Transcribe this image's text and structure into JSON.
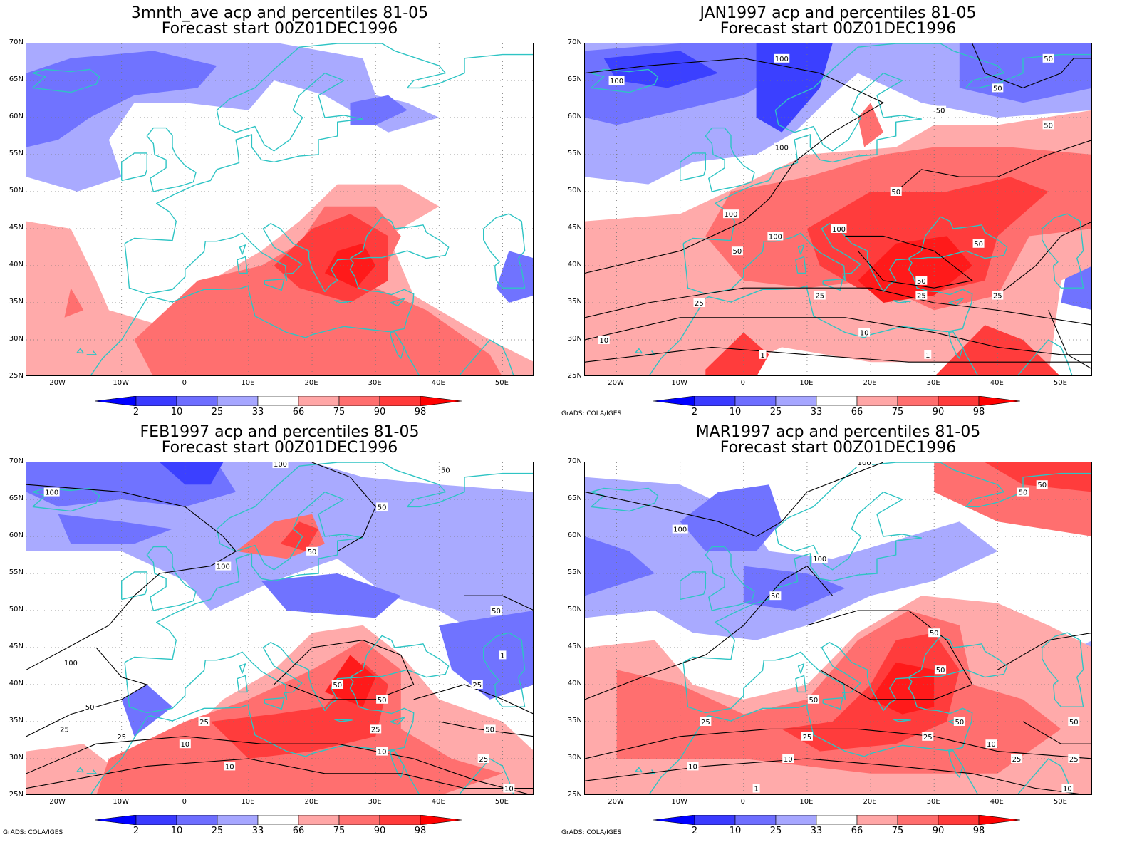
{
  "panels": [
    {
      "title_line1": "3mnth_ave acp and percentiles 81-05",
      "title_line2": "Forecast start 00Z01DEC1996",
      "credit": ""
    },
    {
      "title_line1": "JAN1997 acp and percentiles 81-05",
      "title_line2": "Forecast start 00Z01DEC1996",
      "credit": "GrADS: COLA/IGES"
    },
    {
      "title_line1": "FEB1997 acp and percentiles 81-05",
      "title_line2": "Forecast start 00Z01DEC1996",
      "credit": "GrADS: COLA/IGES"
    },
    {
      "title_line1": "MAR1997 acp and percentiles 81-05",
      "title_line2": "Forecast start 00Z01DEC1996",
      "credit": "GrADS: COLA/IGES"
    }
  ],
  "lat_labels": [
    "70N",
    "65N",
    "60N",
    "55N",
    "50N",
    "45N",
    "40N",
    "35N",
    "30N",
    "25N"
  ],
  "lon_labels": [
    "20W",
    "10W",
    "0",
    "10E",
    "20E",
    "30E",
    "40E",
    "50E"
  ],
  "colorbar": {
    "labels": [
      "2",
      "10",
      "25",
      "33",
      "66",
      "75",
      "90",
      "98"
    ],
    "colors": [
      "#0000ff",
      "#3a3aff",
      "#6e6eff",
      "#a6a6ff",
      "#ffffff",
      "#ffa6a6",
      "#ff6e6e",
      "#ff3a3a",
      "#ff0000"
    ]
  },
  "colors": {
    "coast": "#2ec4c4",
    "contour": "#000000",
    "blue_levels": [
      "#a9aaff",
      "#7073ff",
      "#3b40ff"
    ],
    "red_levels": [
      "#ffaaaa",
      "#ff6f6f",
      "#ff3c3c",
      "#ff1a1a"
    ]
  },
  "contour_labels": [
    [],
    [
      "100",
      "100",
      "50",
      "50",
      "50",
      "100",
      "50",
      "100",
      "100",
      "50",
      "100",
      "50",
      "50",
      "25",
      "25",
      "10",
      "25",
      "10",
      "25",
      "1",
      "1",
      "50"
    ],
    [
      "100",
      "100",
      "50",
      "50",
      "100",
      "50",
      "25",
      "100",
      "50",
      "25",
      "25",
      "10",
      "50",
      "50",
      "25",
      "10",
      "10",
      "50",
      "25",
      "25",
      "10",
      "1",
      "50"
    ],
    [
      "100",
      "100",
      "50",
      "100",
      "50",
      "50",
      "25",
      "50",
      "50",
      "25",
      "10",
      "10",
      "50",
      "25",
      "25",
      "10",
      "1",
      "50",
      "25",
      "10",
      "50"
    ]
  ]
}
